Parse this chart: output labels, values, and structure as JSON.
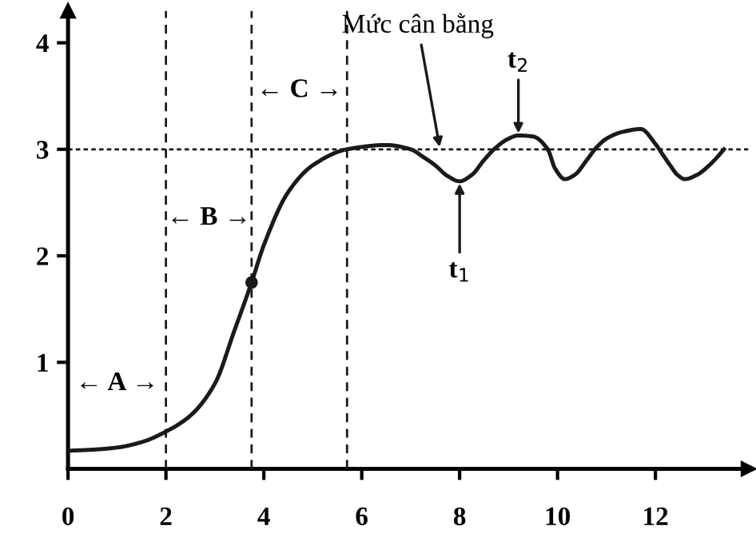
{
  "chart_data": {
    "type": "line",
    "x": [
      0,
      0.5,
      1,
      1.5,
      2,
      2.5,
      3,
      3.4,
      3.75,
      4,
      4.5,
      5,
      5.7,
      6.5,
      7,
      7.25,
      7.5,
      7.75,
      8,
      8.25,
      8.5,
      8.75,
      9,
      9.2,
      9.5,
      9.8,
      9.95,
      10.15,
      10.35,
      10.6,
      10.8,
      11,
      11.3,
      11.7,
      12,
      12.15,
      12.3,
      12.45,
      12.6,
      12.85,
      13.1,
      13.25,
      13.4
    ],
    "series": [
      {
        "color": "#1a1a1a",
        "values": [
          0.17,
          0.18,
          0.2,
          0.25,
          0.35,
          0.5,
          0.8,
          1.3,
          1.75,
          2.1,
          2.6,
          2.85,
          3.0,
          3.04,
          3.0,
          2.93,
          2.85,
          2.75,
          2.7,
          2.76,
          2.9,
          3.02,
          3.1,
          3.13,
          3.12,
          3.0,
          2.82,
          2.72,
          2.76,
          2.9,
          3.02,
          3.1,
          3.16,
          3.19,
          3.05,
          2.95,
          2.85,
          2.76,
          2.72,
          2.76,
          2.85,
          2.92,
          3.0
        ]
      },
      {
        "type": "scatter",
        "color": "#1a1a1a",
        "x": [
          3.75
        ],
        "values": [
          1.75
        ],
        "marker": "circle"
      }
    ],
    "xlim": [
      0,
      13.9
    ],
    "ylim": [
      0,
      4.3
    ],
    "xticks": [
      0,
      2,
      4,
      6,
      8,
      10,
      12
    ],
    "yticks": [
      1,
      2,
      3,
      4
    ],
    "grid": false,
    "legend": false,
    "marker": "none",
    "line_style": "solid",
    "ref_lines": [
      {
        "axis": "y",
        "value": 3,
        "line_style": "dotted"
      },
      {
        "axis": "x",
        "value": 2,
        "line_style": "dashed"
      },
      {
        "axis": "x",
        "value": 3.75,
        "line_style": "dashed"
      },
      {
        "axis": "x",
        "value": 5.7,
        "line_style": "dashed"
      }
    ],
    "annotations": [
      "← A →",
      "← B →",
      "← C →",
      {
        "text": "Mức cân bằng",
        "x": 7.6,
        "y": 3.0
      },
      {
        "text": "t$_{1}$",
        "x": 8.0,
        "y": 2.7
      },
      {
        "text": "t$_{2}$",
        "x": 9.2,
        "y": 3.13
      }
    ]
  }
}
